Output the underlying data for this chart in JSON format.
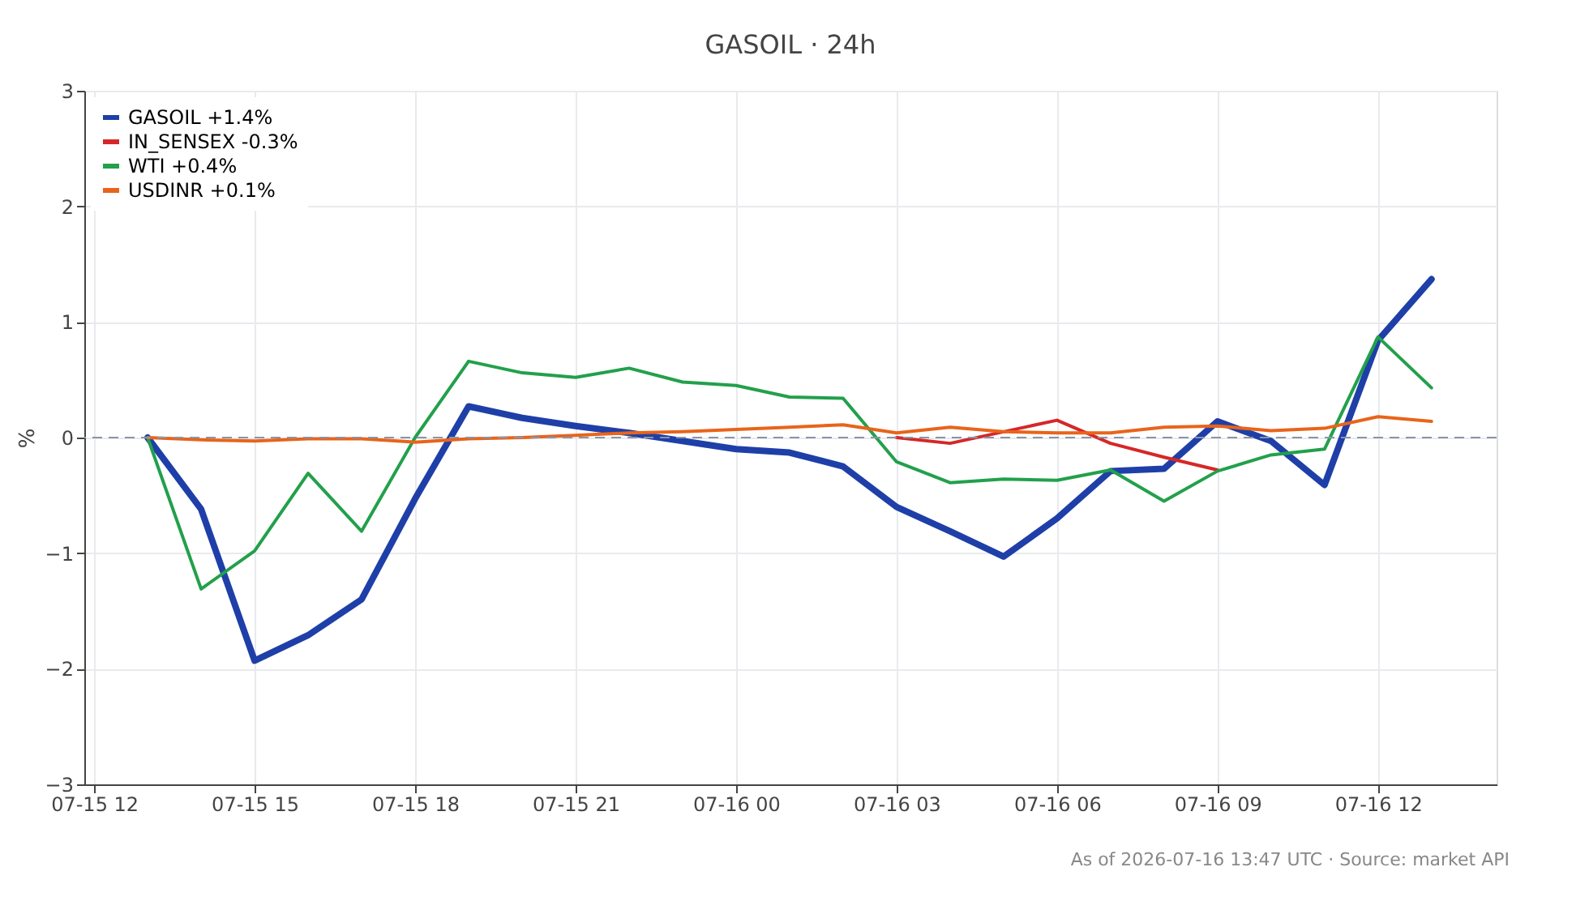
{
  "chart_data": {
    "type": "line",
    "title": "GASOIL · 24h",
    "ylabel": "%",
    "x": [
      "2026-07-15T13:00",
      "2026-07-15T14:00",
      "2026-07-15T15:00",
      "2026-07-15T16:00",
      "2026-07-15T17:00",
      "2026-07-15T18:00",
      "2026-07-15T19:00",
      "2026-07-15T20:00",
      "2026-07-15T21:00",
      "2026-07-15T22:00",
      "2026-07-15T23:00",
      "2026-07-16T00:00",
      "2026-07-16T01:00",
      "2026-07-16T02:00",
      "2026-07-16T03:00",
      "2026-07-16T04:00",
      "2026-07-16T05:00",
      "2026-07-16T06:00",
      "2026-07-16T07:00",
      "2026-07-16T08:00",
      "2026-07-16T09:00",
      "2026-07-16T10:00",
      "2026-07-16T11:00",
      "2026-07-16T12:00",
      "2026-07-16T13:00"
    ],
    "series": [
      {
        "name": "GASOIL +1.4%",
        "color": "#1f3fa8",
        "values": [
          0,
          -0.62,
          -1.93,
          -1.71,
          -1.4,
          -0.53,
          0.27,
          0.17,
          0.1,
          0.04,
          -0.03,
          -0.1,
          -0.13,
          -0.25,
          -0.6,
          -0.81,
          -1.03,
          -0.7,
          -0.29,
          -0.27,
          0.14,
          -0.03,
          -0.41,
          0.84,
          1.37
        ]
      },
      {
        "name": "IN_SENSEX -0.3%",
        "color": "#d62728",
        "values": [
          null,
          null,
          null,
          null,
          null,
          null,
          null,
          null,
          null,
          null,
          null,
          null,
          null,
          null,
          0,
          -0.05,
          0.05,
          0.15,
          -0.05,
          -0.17,
          -0.28,
          null,
          null,
          null,
          null
        ]
      },
      {
        "name": "WTI +0.4%",
        "color": "#22a04b",
        "values": [
          0,
          -1.31,
          -0.98,
          -0.31,
          -0.81,
          0,
          0.66,
          0.56,
          0.52,
          0.6,
          0.48,
          0.45,
          0.35,
          0.34,
          -0.21,
          -0.39,
          -0.36,
          -0.37,
          -0.28,
          -0.55,
          -0.29,
          -0.15,
          -0.1,
          0.87,
          0.43
        ]
      },
      {
        "name": "USDINR +0.1%",
        "color": "#e8641b",
        "values": [
          0,
          -0.02,
          -0.03,
          -0.01,
          -0.01,
          -0.04,
          -0.01,
          0,
          0.02,
          0.04,
          0.05,
          0.07,
          0.09,
          0.11,
          0.04,
          0.09,
          0.05,
          0.04,
          0.04,
          0.09,
          0.1,
          0.06,
          0.08,
          0.18,
          0.14
        ]
      }
    ],
    "xlim": [
      "2026-07-15T11:49",
      "2026-07-16T14:13"
    ],
    "xticks": [
      {
        "value": "2026-07-15T12:00",
        "label": "07-15 12"
      },
      {
        "value": "2026-07-15T15:00",
        "label": "07-15 15"
      },
      {
        "value": "2026-07-15T18:00",
        "label": "07-15 18"
      },
      {
        "value": "2026-07-15T21:00",
        "label": "07-15 21"
      },
      {
        "value": "2026-07-16T00:00",
        "label": "07-16 00"
      },
      {
        "value": "2026-07-16T03:00",
        "label": "07-16 03"
      },
      {
        "value": "2026-07-16T06:00",
        "label": "07-16 06"
      },
      {
        "value": "2026-07-16T09:00",
        "label": "07-16 09"
      },
      {
        "value": "2026-07-16T12:00",
        "label": "07-16 12"
      }
    ],
    "ylim": [
      -3,
      3
    ],
    "yticks": [
      {
        "value": -3,
        "label": "−3"
      },
      {
        "value": -2,
        "label": "−2"
      },
      {
        "value": -1,
        "label": "−1"
      },
      0,
      1,
      2,
      3
    ],
    "ref_lines": [
      {
        "axis": "y",
        "value": 0,
        "color": "#8a94a6",
        "line_style": "dashed"
      }
    ],
    "grid": true,
    "legend": "top left",
    "marker": "none",
    "line_style": "solid",
    "annotations": [
      "As of 2026-07-16 13:47 UTC · Source: market API"
    ]
  }
}
